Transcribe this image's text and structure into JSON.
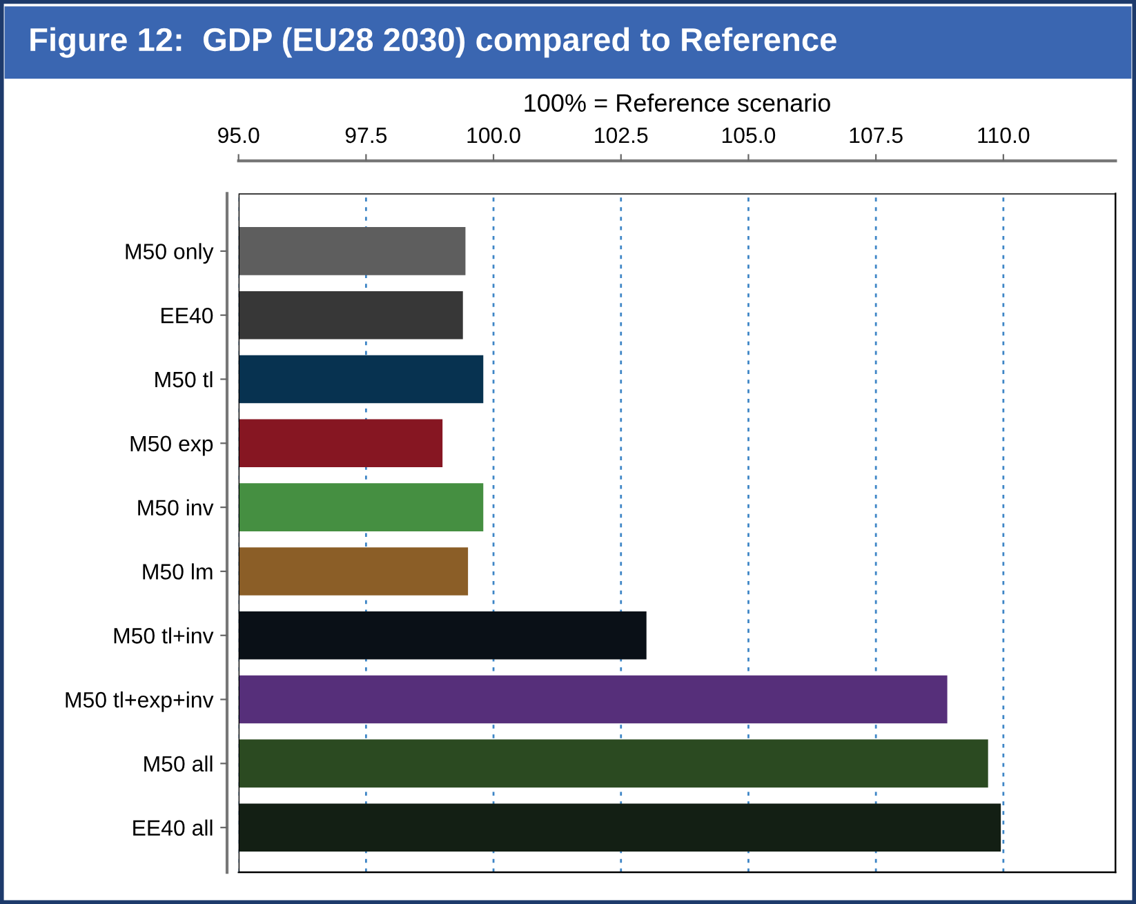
{
  "chart_data": {
    "type": "bar",
    "orientation": "horizontal",
    "title": "Figure 12:  GDP (EU28 2030) compared to Reference",
    "xlabel": "100% = Reference scenario",
    "categories": [
      "M50 only",
      "EE40",
      "M50 tl",
      "M50 exp",
      "M50 inv",
      "M50 lm",
      "M50 tl+inv",
      "M50 tl+exp+inv",
      "M50 all",
      "EE40 all"
    ],
    "values": [
      99.45,
      99.4,
      99.8,
      99.0,
      99.8,
      99.5,
      103.0,
      108.9,
      109.7,
      109.95
    ],
    "colors": [
      "#5e5e5e",
      "#373737",
      "#073250",
      "#861622",
      "#458f41",
      "#8b5e27",
      "#0a1017",
      "#562f7a",
      "#2b4a21",
      "#131f14"
    ],
    "xlim": [
      95,
      112.2
    ],
    "xticks": [
      {
        "value": 95,
        "label": "95.0"
      },
      {
        "value": 97.5,
        "label": "97.5"
      },
      {
        "value": 100,
        "label": "100.0"
      },
      {
        "value": 102.5,
        "label": "102.5"
      },
      {
        "value": 105,
        "label": "105.0"
      },
      {
        "value": 107.5,
        "label": "107.5"
      },
      {
        "value": 110,
        "label": "110.0"
      }
    ],
    "grid": "x"
  }
}
